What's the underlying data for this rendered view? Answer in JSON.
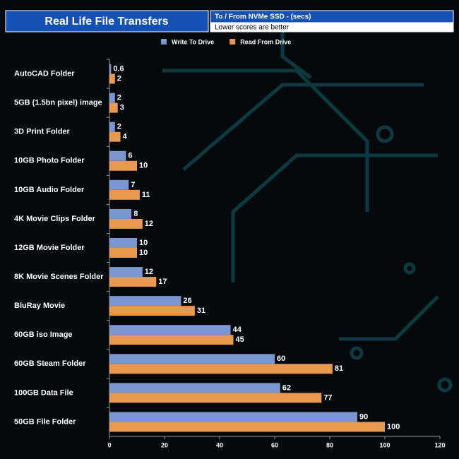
{
  "chart_data": {
    "type": "hbar",
    "title": "Real Life File Transfers",
    "subtitle": "To /  From NVMe  SSD - (secs)",
    "annotation": "Lower scores are better",
    "categories": [
      "AutoCAD Folder",
      "5GB (1.5bn pixel) image",
      "3D Print Folder",
      "10GB Photo Folder",
      "10GB Audio Folder",
      "4K Movie Clips Folder",
      "12GB Movie Folder",
      "8K Movie Scenes Folder",
      "BluRay Movie",
      "60GB iso Image",
      "60GB Steam Folder",
      "100GB Data File",
      "50GB File Folder"
    ],
    "series": [
      {
        "name": "Write To  Drive",
        "color": "#7b95cf",
        "values": [
          0.6,
          2,
          2,
          6,
          7,
          8,
          10,
          12,
          26,
          44,
          60,
          62,
          90
        ]
      },
      {
        "name": "Read From  Drive",
        "color": "#e8994f",
        "values": [
          2,
          3,
          4,
          10,
          11,
          12,
          10,
          17,
          31,
          45,
          81,
          77,
          100
        ]
      }
    ],
    "xlim": [
      0,
      120
    ],
    "xticks": [
      0,
      20,
      40,
      60,
      80,
      100,
      120
    ],
    "legend": "top"
  }
}
